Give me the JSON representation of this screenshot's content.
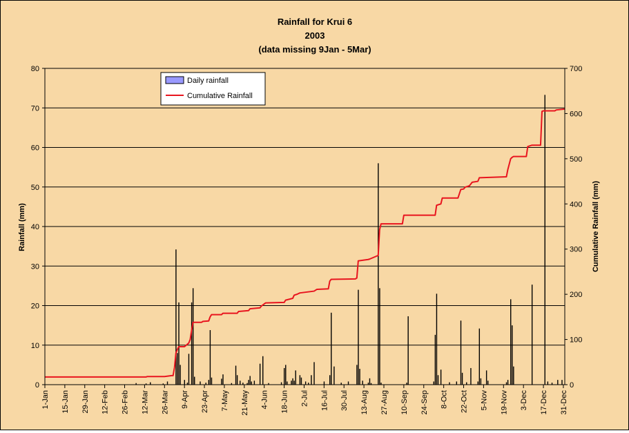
{
  "chart_data": {
    "type": "bar",
    "title_lines": [
      "Rainfall for Krui 6",
      "2003",
      "(data missing 9Jan - 5Mar)"
    ],
    "ylabel": "Rainfall (mm)",
    "y2label": "Cumulative Rainfall (mm)",
    "ylim": [
      0,
      80
    ],
    "y2lim": [
      0,
      700
    ],
    "yticks": [
      0,
      10,
      20,
      30,
      40,
      50,
      60,
      70,
      80
    ],
    "y2ticks": [
      0,
      100,
      200,
      300,
      400,
      500,
      600,
      700
    ],
    "xlim": [
      1,
      366
    ],
    "xticks": [
      {
        "label": "1-Jan",
        "day": 1
      },
      {
        "label": "15-Jan",
        "day": 15
      },
      {
        "label": "29-Jan",
        "day": 29
      },
      {
        "label": "12-Feb",
        "day": 43
      },
      {
        "label": "26-Feb",
        "day": 57
      },
      {
        "label": "12-Mar",
        "day": 71
      },
      {
        "label": "26-Mar",
        "day": 85
      },
      {
        "label": "9-Apr",
        "day": 99
      },
      {
        "label": "23-Apr",
        "day": 113
      },
      {
        "label": "7-May",
        "day": 127
      },
      {
        "label": "21-May",
        "day": 141
      },
      {
        "label": "4-Jun",
        "day": 155
      },
      {
        "label": "18-Jun",
        "day": 169
      },
      {
        "label": "2-Jul",
        "day": 183
      },
      {
        "label": "16-Jul",
        "day": 197
      },
      {
        "label": "30-Jul",
        "day": 211
      },
      {
        "label": "13-Aug",
        "day": 225
      },
      {
        "label": "27-Aug",
        "day": 239
      },
      {
        "label": "10-Sep",
        "day": 253
      },
      {
        "label": "24-Sep",
        "day": 267
      },
      {
        "label": "8-Oct",
        "day": 281
      },
      {
        "label": "22-Oct",
        "day": 295
      },
      {
        "label": "5-Nov",
        "day": 309
      },
      {
        "label": "19-Nov",
        "day": 323
      },
      {
        "label": "3-Dec",
        "day": 337
      },
      {
        "label": "17-Dec",
        "day": 351
      },
      {
        "label": "31-Dec",
        "day": 365
      }
    ],
    "grid": true,
    "legend": {
      "position": "top-left",
      "entries": [
        "Daily rainfall",
        "Cumulative Rainfall"
      ]
    },
    "colors": {
      "plot_bg": "#f8d8a5",
      "bars": "#000000",
      "cumulative": "#e8141e",
      "legend_swatch": "#9999ff"
    },
    "series": [
      {
        "name": "Daily rainfall",
        "type": "bar",
        "axis": "left",
        "x_unit": "day of year 2003",
        "points": [
          [
            65,
            0.4
          ],
          [
            72,
            0.3
          ],
          [
            75,
            0.6
          ],
          [
            84,
            0.3
          ],
          [
            87,
            0.8
          ],
          [
            93,
            34.2
          ],
          [
            94,
            8.0
          ],
          [
            95,
            20.8
          ],
          [
            96,
            5.0
          ],
          [
            99,
            1.2
          ],
          [
            101,
            0.5
          ],
          [
            102,
            7.8
          ],
          [
            104,
            20.8
          ],
          [
            105,
            24.4
          ],
          [
            106,
            2.0
          ],
          [
            110,
            0.8
          ],
          [
            114,
            0.5
          ],
          [
            116,
            1.2
          ],
          [
            117,
            13.8
          ],
          [
            118,
            1.8
          ],
          [
            125,
            1.5
          ],
          [
            126,
            2.6
          ],
          [
            132,
            0.4
          ],
          [
            135,
            4.8
          ],
          [
            136,
            2.4
          ],
          [
            138,
            1.0
          ],
          [
            140,
            0.5
          ],
          [
            143,
            0.4
          ],
          [
            144,
            1.2
          ],
          [
            145,
            2.2
          ],
          [
            146,
            0.8
          ],
          [
            148,
            1.0
          ],
          [
            152,
            5.3
          ],
          [
            154,
            7.2
          ],
          [
            158,
            0.4
          ],
          [
            167,
            0.6
          ],
          [
            169,
            4.2
          ],
          [
            170,
            5.0
          ],
          [
            171,
            0.8
          ],
          [
            174,
            1.0
          ],
          [
            175,
            1.6
          ],
          [
            176,
            1.0
          ],
          [
            177,
            3.6
          ],
          [
            180,
            2.4
          ],
          [
            181,
            1.8
          ],
          [
            184,
            0.8
          ],
          [
            186,
            0.5
          ],
          [
            188,
            2.4
          ],
          [
            190,
            5.7
          ],
          [
            197,
            0.8
          ],
          [
            201,
            2.4
          ],
          [
            202,
            18.2
          ],
          [
            204,
            4.6
          ],
          [
            209,
            0.5
          ],
          [
            214,
            0.8
          ],
          [
            220,
            5.0
          ],
          [
            221,
            24.0
          ],
          [
            222,
            4.0
          ],
          [
            224,
            1.0
          ],
          [
            228,
            0.5
          ],
          [
            229,
            1.6
          ],
          [
            230,
            0.4
          ],
          [
            235,
            56.0
          ],
          [
            236,
            24.4
          ],
          [
            237,
            0.5
          ],
          [
            255,
            0.5
          ],
          [
            256,
            17.3
          ],
          [
            274,
            0.8
          ],
          [
            275,
            12.6
          ],
          [
            276,
            23.0
          ],
          [
            277,
            2.4
          ],
          [
            279,
            3.8
          ],
          [
            285,
            0.6
          ],
          [
            290,
            0.8
          ],
          [
            293,
            16.2
          ],
          [
            294,
            3.0
          ],
          [
            297,
            0.6
          ],
          [
            300,
            4.2
          ],
          [
            305,
            0.8
          ],
          [
            306,
            14.2
          ],
          [
            307,
            1.6
          ],
          [
            311,
            3.6
          ],
          [
            312,
            1.0
          ],
          [
            325,
            0.6
          ],
          [
            326,
            1.2
          ],
          [
            328,
            21.6
          ],
          [
            329,
            15.0
          ],
          [
            330,
            4.6
          ],
          [
            343,
            25.3
          ],
          [
            352,
            73.3
          ],
          [
            354,
            0.8
          ],
          [
            357,
            0.5
          ],
          [
            361,
            1.2
          ],
          [
            364,
            1.2
          ]
        ]
      },
      {
        "name": "Cumulative Rainfall",
        "type": "line",
        "axis": "right",
        "x_unit": "day of year 2003",
        "points": [
          [
            1,
            17
          ],
          [
            72,
            17
          ],
          [
            73,
            18
          ],
          [
            85,
            18
          ],
          [
            90,
            20
          ],
          [
            91,
            20
          ],
          [
            92,
            38
          ],
          [
            93,
            70
          ],
          [
            94,
            78
          ],
          [
            95,
            84
          ],
          [
            99,
            84
          ],
          [
            102,
            92
          ],
          [
            103,
            100
          ],
          [
            104,
            120
          ],
          [
            105,
            138
          ],
          [
            111,
            138
          ],
          [
            112,
            140
          ],
          [
            116,
            141
          ],
          [
            117,
            150
          ],
          [
            118,
            155
          ],
          [
            125,
            155
          ],
          [
            126,
            158
          ],
          [
            136,
            158
          ],
          [
            137,
            162
          ],
          [
            144,
            164
          ],
          [
            145,
            168
          ],
          [
            152,
            170
          ],
          [
            153,
            174
          ],
          [
            156,
            181
          ],
          [
            169,
            182
          ],
          [
            170,
            187
          ],
          [
            175,
            191
          ],
          [
            176,
            198
          ],
          [
            178,
            200
          ],
          [
            180,
            203
          ],
          [
            190,
            207
          ],
          [
            192,
            211
          ],
          [
            200,
            212
          ],
          [
            201,
            229
          ],
          [
            202,
            233
          ],
          [
            219,
            234
          ],
          [
            220,
            236
          ],
          [
            221,
            274
          ],
          [
            228,
            277
          ],
          [
            229,
            278
          ],
          [
            235,
            286
          ],
          [
            236,
            343
          ],
          [
            237,
            356
          ],
          [
            252,
            356
          ],
          [
            253,
            375
          ],
          [
            275,
            375
          ],
          [
            276,
            397
          ],
          [
            279,
            400
          ],
          [
            280,
            413
          ],
          [
            291,
            413
          ],
          [
            293,
            432
          ],
          [
            295,
            433
          ],
          [
            296,
            437
          ],
          [
            299,
            440
          ],
          [
            301,
            448
          ],
          [
            305,
            450
          ],
          [
            306,
            458
          ],
          [
            325,
            460
          ],
          [
            326,
            476
          ],
          [
            328,
            500
          ],
          [
            329,
            503
          ],
          [
            330,
            505
          ],
          [
            339,
            505
          ],
          [
            340,
            527
          ],
          [
            343,
            530
          ],
          [
            349,
            530
          ],
          [
            350,
            605
          ],
          [
            351,
            606
          ],
          [
            359,
            606
          ],
          [
            360,
            608
          ],
          [
            366,
            610
          ]
        ]
      }
    ]
  }
}
